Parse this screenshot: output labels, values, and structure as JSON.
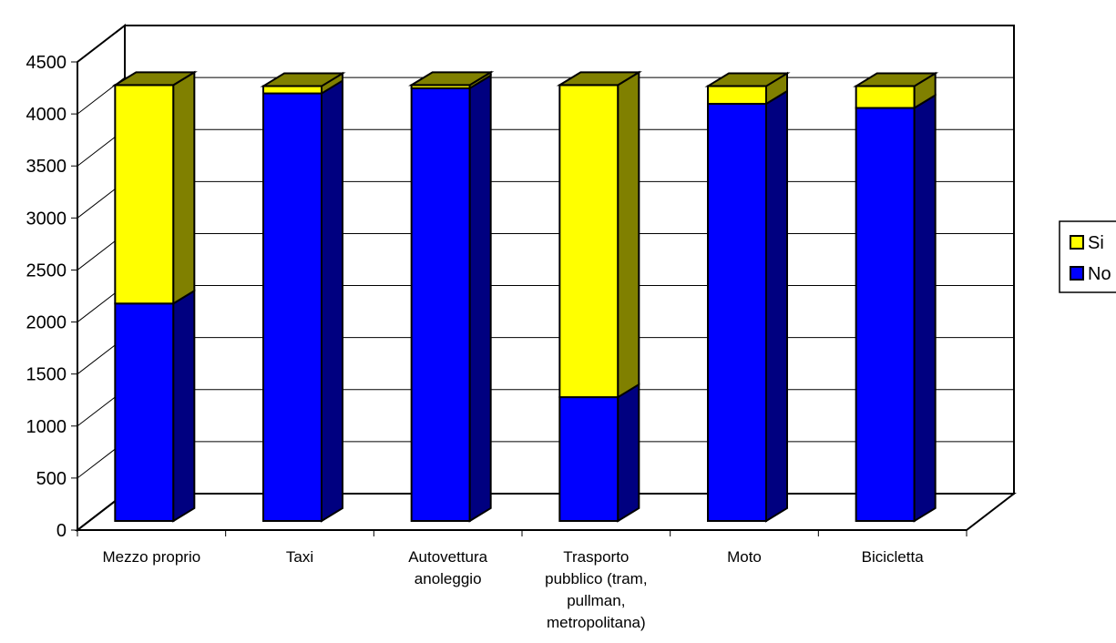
{
  "chart_data": {
    "type": "bar",
    "stacked": true,
    "three_d": true,
    "categories": [
      [
        "Mezzo proprio"
      ],
      [
        "Taxi"
      ],
      [
        "Autovettura",
        "anoleggio"
      ],
      [
        "Trasporto",
        "pubblico (tram,",
        "pullman,",
        "metropolitana)"
      ],
      [
        "Moto"
      ],
      [
        "Bicicletta"
      ]
    ],
    "series": [
      {
        "name": "No",
        "color": "#0000ff",
        "side_color": "#000080",
        "values": [
          2090,
          4110,
          4160,
          1190,
          4010,
          3970
        ]
      },
      {
        "name": "Si",
        "color": "#ffff00",
        "side_color": "#808000",
        "values": [
          2100,
          70,
          30,
          3000,
          170,
          210
        ]
      }
    ],
    "ylim": [
      0,
      4500
    ],
    "yticks": [
      0,
      500,
      1000,
      1500,
      2000,
      2500,
      3000,
      3500,
      4000,
      4500
    ],
    "grid": true,
    "legend": {
      "position": "right",
      "order": [
        "Si",
        "No"
      ]
    }
  }
}
